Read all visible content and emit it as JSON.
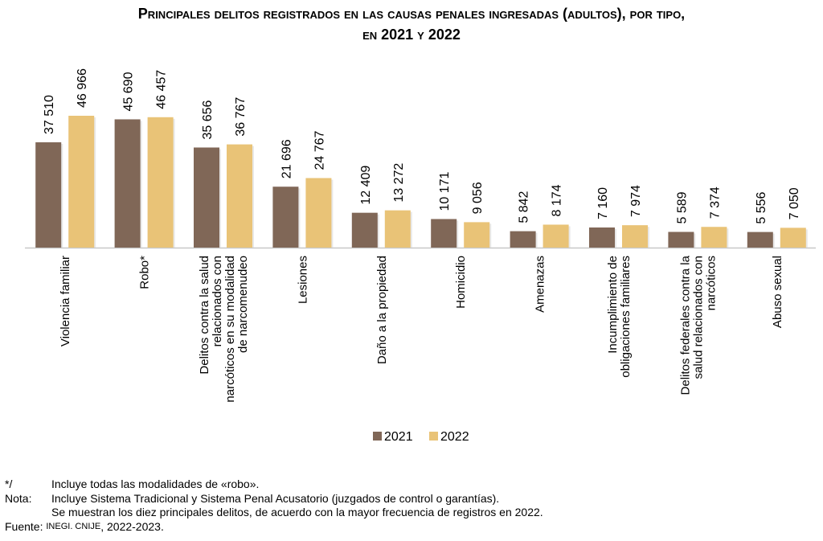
{
  "title_line1": "Principales delitos registrados en las causas penales ingresadas (adultos), por tipo,",
  "title_line2": "en 2021 y 2022",
  "chart_data": {
    "type": "bar",
    "title": "Principales delitos registrados en las causas penales ingresadas (adultos), por tipo, en 2021 y 2022",
    "categories": [
      [
        "Violencia familiar"
      ],
      [
        "Robo*"
      ],
      [
        "Delitos contra la salud",
        "relacionados con",
        "narcóticos en su modalidad",
        "de narcomenudeo"
      ],
      [
        "Lesiones"
      ],
      [
        "Daño a la propiedad"
      ],
      [
        "Homicidio"
      ],
      [
        "Amenazas"
      ],
      [
        "Incumplimiento de",
        "obligaciones familiares"
      ],
      [
        "Delitos federales contra la",
        "salud relacionados con",
        "narcóticos"
      ],
      [
        "Abuso sexual"
      ]
    ],
    "series": [
      {
        "name": "2021",
        "color": "#806757",
        "values": [
          37510,
          45690,
          35656,
          21696,
          12409,
          10171,
          5842,
          7160,
          5589,
          5556
        ],
        "labels": [
          "37 510",
          "45 690",
          "35 656",
          "21 696",
          "12 409",
          "10 171",
          "5 842",
          "7 160",
          "5 589",
          "5 556"
        ]
      },
      {
        "name": "2022",
        "color": "#E9C377",
        "values": [
          46966,
          46457,
          36767,
          24767,
          13272,
          9056,
          8174,
          7974,
          7374,
          7050
        ],
        "labels": [
          "46 966",
          "46 457",
          "36 767",
          "24 767",
          "13 272",
          "9 056",
          "8 174",
          "7 974",
          "7 374",
          "7 050"
        ]
      }
    ],
    "xlabel": "",
    "ylabel": "",
    "ylim": [
      0,
      50000
    ],
    "grid": false,
    "legend_position": "bottom"
  },
  "notes": {
    "robo_key": "*/",
    "robo_text": "Incluye todas las modalidades de «robo».",
    "nota_key": "Nota:",
    "nota_text1": "Incluye Sistema Tradicional y Sistema Penal Acusatorio (juzgados de control o garantías).",
    "nota_text2": "Se muestran los diez principales delitos, de acuerdo con la mayor frecuencia de registros en 2022.",
    "fuente_key": "Fuente:",
    "fuente_org": "INEGI. CNIJE",
    "fuente_years": ", 2022-2023."
  }
}
